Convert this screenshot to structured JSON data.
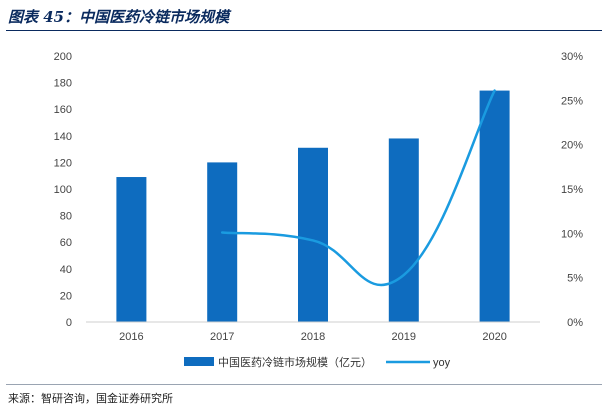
{
  "figure": {
    "title": "图表 45：中国医药冷链市场规模",
    "source": "来源：智研咨询，国金证券研究所"
  },
  "chart_data": {
    "type": "bar",
    "categories": [
      "2016",
      "2017",
      "2018",
      "2019",
      "2020"
    ],
    "series": [
      {
        "name": "中国医药冷链市场规模（亿元）",
        "type": "bar",
        "axis": "left",
        "values": [
          109,
          120,
          131,
          138,
          174
        ],
        "color": "#0e6cbf"
      },
      {
        "name": "yoy",
        "type": "line",
        "axis": "right",
        "values": [
          null,
          10.1,
          9.2,
          5.3,
          26.1
        ],
        "color": "#1a9be0"
      }
    ],
    "left_axis": {
      "min": 0,
      "max": 200,
      "step": 20,
      "ticks": [
        "0",
        "20",
        "40",
        "60",
        "80",
        "100",
        "120",
        "140",
        "160",
        "180",
        "200"
      ]
    },
    "right_axis": {
      "min": 0,
      "max": 30,
      "step": 5,
      "ticks": [
        "0%",
        "5%",
        "10%",
        "15%",
        "20%",
        "25%",
        "30%"
      ]
    },
    "legend_position": "bottom-center",
    "grid": false
  }
}
